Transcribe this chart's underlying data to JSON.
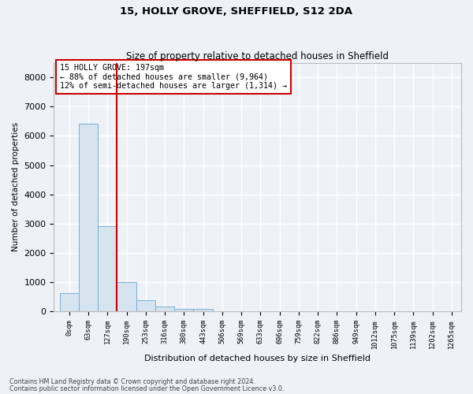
{
  "title": "15, HOLLY GROVE, SHEFFIELD, S12 2DA",
  "subtitle": "Size of property relative to detached houses in Sheffield",
  "xlabel": "Distribution of detached houses by size in Sheffield",
  "ylabel": "Number of detached properties",
  "categories": [
    "0sqm",
    "63sqm",
    "127sqm",
    "190sqm",
    "253sqm",
    "316sqm",
    "380sqm",
    "443sqm",
    "506sqm",
    "569sqm",
    "633sqm",
    "696sqm",
    "759sqm",
    "822sqm",
    "886sqm",
    "949sqm",
    "1012sqm",
    "1075sqm",
    "1139sqm",
    "1202sqm",
    "1265sqm"
  ],
  "values": [
    620,
    6420,
    2920,
    990,
    370,
    155,
    85,
    75,
    0,
    0,
    0,
    0,
    0,
    0,
    0,
    0,
    0,
    0,
    0,
    0,
    0
  ],
  "bar_color": "#d6e4f0",
  "bar_edge_color": "#7aafd4",
  "annotation_title": "15 HOLLY GROVE: 197sqm",
  "annotation_line1": "← 88% of detached houses are smaller (9,964)",
  "annotation_line2": "12% of semi-detached houses are larger (1,314) →",
  "vline_x": 2.97,
  "ylim": [
    0,
    8500
  ],
  "yticks": [
    0,
    1000,
    2000,
    3000,
    4000,
    5000,
    6000,
    7000,
    8000
  ],
  "footnote1": "Contains HM Land Registry data © Crown copyright and database right 2024.",
  "footnote2": "Contains public sector information licensed under the Open Government Licence v3.0.",
  "background_color": "#eef2f7",
  "grid_color": "#ffffff",
  "vline_color": "#cc0000",
  "annotation_box_edge_color": "#cc0000"
}
